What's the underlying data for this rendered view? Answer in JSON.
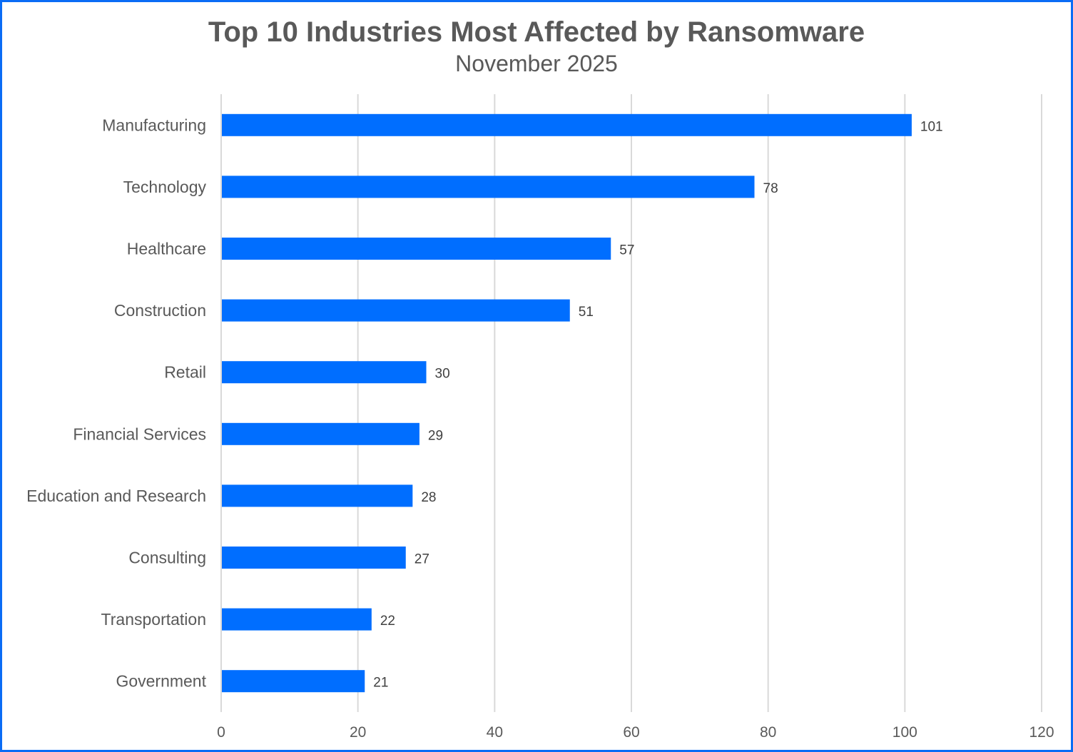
{
  "chart_data": {
    "type": "bar",
    "orientation": "horizontal",
    "title": "Top 10 Industries Most Affected by Ransomware",
    "subtitle": "November 2025",
    "categories": [
      "Manufacturing",
      "Technology",
      "Healthcare",
      "Construction",
      "Retail",
      "Financial Services",
      "Education and Research",
      "Consulting",
      "Transportation",
      "Government"
    ],
    "values": [
      101,
      78,
      57,
      51,
      30,
      29,
      28,
      27,
      22,
      21
    ],
    "xlim": [
      0,
      120
    ],
    "xticks": [
      0,
      20,
      40,
      60,
      80,
      100,
      120
    ],
    "grid": true,
    "data_labels": true,
    "bar_color": "#006EFF",
    "border_color": "#0A6CF5"
  }
}
